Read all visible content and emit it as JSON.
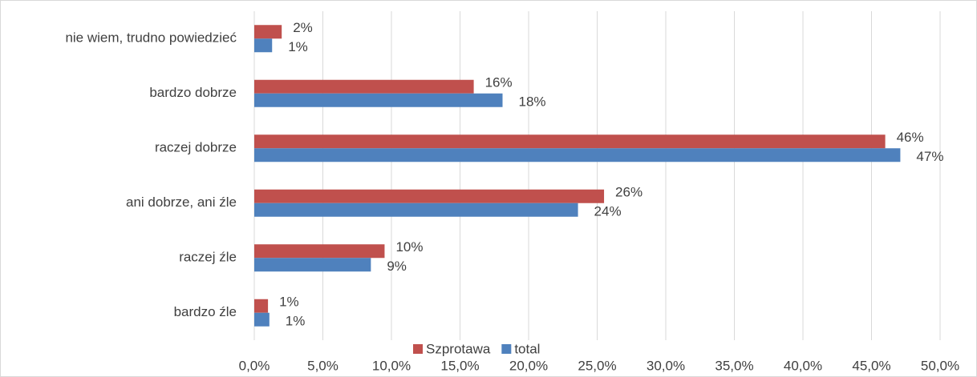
{
  "chart_data": {
    "type": "hbar",
    "categories": [
      "nie wiem, trudno powiedzieć",
      "bardzo dobrze",
      "raczej dobrze",
      "ani dobrze, ani źle",
      "raczej źle",
      "bardzo źle"
    ],
    "series": [
      {
        "name": "Szprotawa",
        "color": "#c0504d",
        "values": [
          2.0,
          16.0,
          46.0,
          25.5,
          9.5,
          1.0
        ],
        "value_labels": [
          "2%",
          "16%",
          "46%",
          "26%",
          "10%",
          "1%"
        ]
      },
      {
        "name": "total",
        "color": "#4f81bd",
        "values": [
          1.3,
          18.1,
          47.1,
          23.6,
          8.5,
          1.1
        ],
        "value_labels": [
          "1%",
          "18%",
          "47%",
          "24%",
          "9%",
          "1%"
        ]
      }
    ],
    "xlim": [
      0,
      50
    ],
    "xticks": [
      {
        "value": 0,
        "label": "0,0%"
      },
      {
        "value": 5,
        "label": "5,0%"
      },
      {
        "value": 10,
        "label": "10,0%"
      },
      {
        "value": 15,
        "label": "15,0%"
      },
      {
        "value": 20,
        "label": "20,0%"
      },
      {
        "value": 25,
        "label": "25,0%"
      },
      {
        "value": 30,
        "label": "30,0%"
      },
      {
        "value": 35,
        "label": "35,0%"
      },
      {
        "value": 40,
        "label": "40,0%"
      },
      {
        "value": 45,
        "label": "45,0%"
      },
      {
        "value": 50,
        "label": "50,0%"
      }
    ],
    "grid": true,
    "legend": "bottom"
  }
}
